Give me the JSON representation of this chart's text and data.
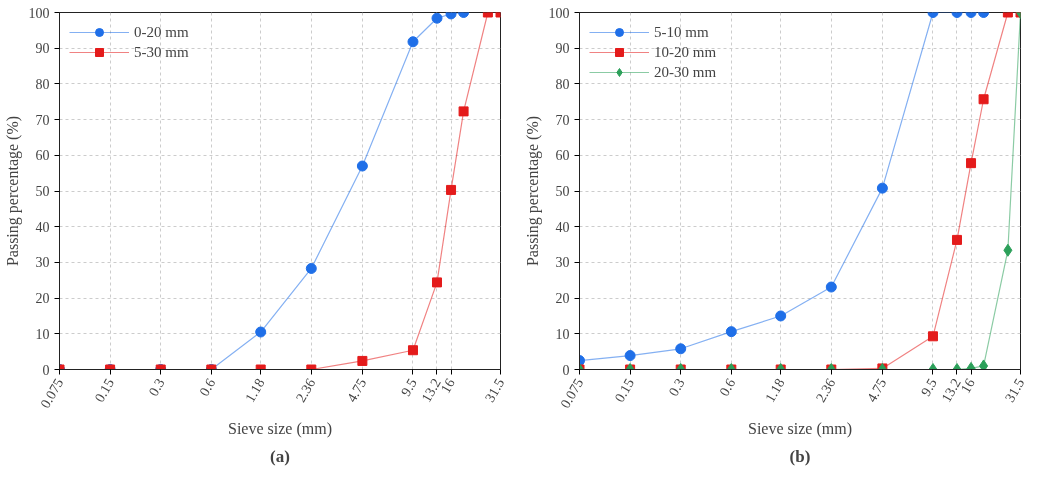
{
  "chart_data": [
    {
      "type": "line",
      "title": "(a)",
      "xlabel": "Sieve size (mm)",
      "ylabel": "Passing percentage (%)",
      "log": "x",
      "grid": true,
      "legend": "top left",
      "xlim": [
        0.075,
        31.5
      ],
      "ylim": [
        0,
        100
      ],
      "xticks": [
        0.075,
        0.15,
        0.3,
        0.6,
        1.18,
        2.36,
        4.75,
        9.5,
        13.2,
        16,
        31.5
      ],
      "yticks": [
        0,
        10,
        20,
        30,
        40,
        50,
        60,
        70,
        80,
        90,
        100
      ],
      "series": [
        {
          "name": "0-20 mm",
          "color": "#1f6fe8",
          "marker": "circle",
          "x": [
            0.075,
            0.15,
            0.3,
            0.6,
            1.18,
            2.36,
            4.75,
            9.5,
            13.2,
            16,
            19
          ],
          "values": [
            0,
            0,
            0,
            0,
            10.5,
            28.3,
            57.0,
            91.8,
            98.4,
            99.6,
            100
          ]
        },
        {
          "name": "5-30 mm",
          "color": "#e41b1b",
          "marker": "square",
          "x": [
            0.075,
            0.15,
            0.3,
            0.6,
            1.18,
            2.36,
            4.75,
            9.5,
            13.2,
            16,
            19,
            26.5,
            31.5
          ],
          "values": [
            0,
            0,
            0,
            0,
            0,
            0,
            2.4,
            5.4,
            24.4,
            50.3,
            72.3,
            100,
            100
          ]
        }
      ]
    },
    {
      "type": "line",
      "title": "(b)",
      "xlabel": "Sieve size (mm)",
      "ylabel": "Passing percentage (%)",
      "log": "x",
      "grid": true,
      "legend": "top left",
      "xlim": [
        0.075,
        31.5
      ],
      "ylim": [
        0,
        100
      ],
      "xticks": [
        0.075,
        0.15,
        0.3,
        0.6,
        1.18,
        2.36,
        4.75,
        9.5,
        13.2,
        16,
        31.5
      ],
      "yticks": [
        0,
        10,
        20,
        30,
        40,
        50,
        60,
        70,
        80,
        90,
        100
      ],
      "series": [
        {
          "name": "5-10 mm",
          "color": "#1f6fe8",
          "marker": "circle",
          "x": [
            0.075,
            0.15,
            0.3,
            0.6,
            1.18,
            2.36,
            4.75,
            9.5,
            13.2,
            16,
            19
          ],
          "values": [
            2.5,
            3.9,
            5.8,
            10.6,
            15.0,
            23.1,
            50.8,
            100,
            100,
            100,
            100
          ]
        },
        {
          "name": "10-20 mm",
          "color": "#e41b1b",
          "marker": "square",
          "x": [
            0.075,
            0.15,
            0.3,
            0.6,
            1.18,
            2.36,
            4.75,
            9.5,
            13.2,
            16,
            19,
            26.5,
            31.5
          ],
          "values": [
            0,
            0,
            0,
            0,
            0,
            0,
            0.3,
            9.3,
            36.3,
            57.8,
            75.7,
            100,
            100
          ]
        },
        {
          "name": "20-30 mm",
          "color": "#2ca05a",
          "marker": "diamond",
          "x": [
            0.075,
            0.15,
            0.3,
            0.6,
            1.18,
            2.36,
            4.75,
            9.5,
            13.2,
            16,
            19,
            26.5,
            31.5
          ],
          "values": [
            0,
            0,
            0,
            0,
            0,
            0,
            0,
            0,
            0,
            0.3,
            1.0,
            33.4,
            100
          ]
        }
      ]
    }
  ]
}
